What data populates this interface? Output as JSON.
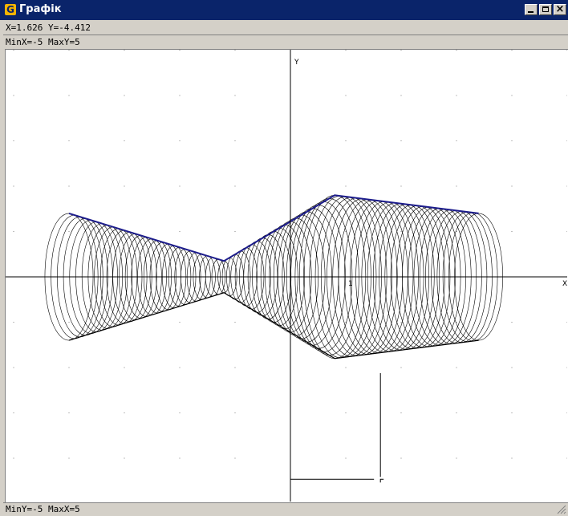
{
  "window": {
    "title": "Графік",
    "app_icon_letter": "G"
  },
  "status": {
    "cursor_readout": "X=1.626  Y=-4.412",
    "range_top": "MinX=-5  MaxY=5",
    "range_bottom": "MinY=-5  MaxX=5"
  },
  "plot": {
    "y_axis_label": "Y",
    "x_axis_label": "X",
    "tick_label": "1",
    "min_x": -5,
    "max_x": 5,
    "min_y": -5,
    "max_y": 5,
    "cursor": {
      "x": 1.626,
      "y": -4.412
    },
    "profile": {
      "x": [
        -4.0,
        -1.2,
        0.8,
        3.4
      ],
      "r": [
        1.4,
        0.35,
        1.8,
        1.4
      ]
    },
    "rings": 75,
    "colors": {
      "curve": "#000000",
      "edge": "#1c1c8c",
      "axes": "#000000",
      "grid_dots": "#808080",
      "crosshair": "#000000"
    }
  }
}
